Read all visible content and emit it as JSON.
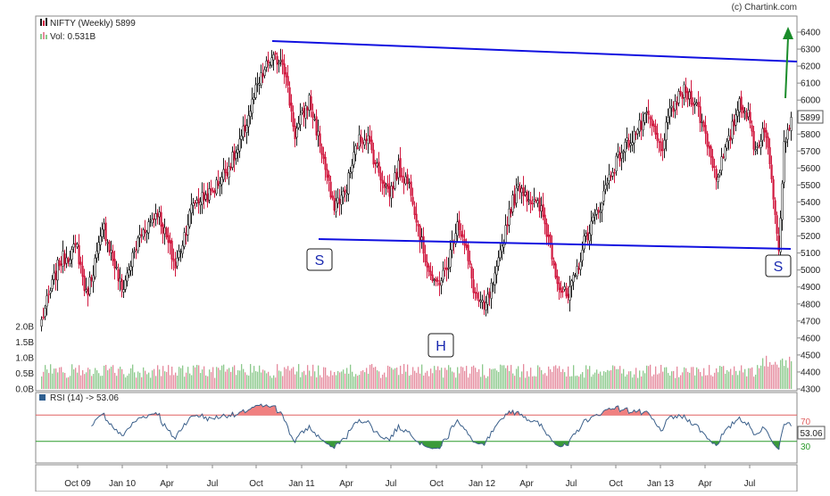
{
  "header": {
    "copyright": "(c) Chartink.com",
    "symbol_line": "NIFTY (Weekly) 5899",
    "volume_line": "Vol: 0.531B"
  },
  "rsi": {
    "label": "RSI (14) -> 53.06",
    "value_label": "53.06",
    "upper_label": "70",
    "lower_label": "30"
  },
  "price_label": "5899",
  "annotations": {
    "left_shoulder": "S",
    "head": "H",
    "right_shoulder": "S"
  },
  "colors": {
    "bull": "#1a1a1a",
    "bear": "#d0183f",
    "vol_bull": "#8cc98c",
    "vol_bear": "#e58a9d",
    "trendline": "#1010e0",
    "arrow": "#1a8c2a",
    "rsi_line": "#3a5f8a",
    "rsi_upper": "#e06060",
    "rsi_lower": "#2a9a2a"
  },
  "chart_data": [
    {
      "type": "candlestick",
      "title": "NIFTY (Weekly) 5899",
      "x_tick_labels": [
        "Oct 09",
        "Jan 10",
        "Apr",
        "Jul",
        "Oct",
        "Jan 11",
        "Apr",
        "Jul",
        "Oct",
        "Jan 12",
        "Apr",
        "Jul",
        "Oct",
        "Jan 13",
        "Apr",
        "Jul"
      ],
      "y_tick_labels": [
        "4300",
        "4400",
        "4500",
        "4600",
        "4700",
        "4800",
        "4900",
        "5000",
        "5100",
        "5200",
        "5300",
        "5400",
        "5500",
        "5600",
        "5700",
        "5800",
        "5900",
        "6000",
        "6100",
        "6200",
        "6300",
        "6400"
      ],
      "ylim": [
        4300,
        6500
      ],
      "volume_tick_labels": [
        "0.0B",
        "0.5B",
        "1.0B",
        "1.5B",
        "2.0B"
      ],
      "volume_ylim": [
        0,
        2.0
      ],
      "last_close": 5899,
      "close_path": [
        [
          0,
          4700
        ],
        [
          10,
          5050
        ],
        [
          20,
          5130
        ],
        [
          25,
          4850
        ],
        [
          35,
          5250
        ],
        [
          45,
          4880
        ],
        [
          55,
          5200
        ],
        [
          65,
          5350
        ],
        [
          75,
          5020
        ],
        [
          85,
          5400
        ],
        [
          95,
          5450
        ],
        [
          110,
          5700
        ],
        [
          120,
          6050
        ],
        [
          127,
          6220
        ],
        [
          135,
          6250
        ],
        [
          142,
          5800
        ],
        [
          150,
          6000
        ],
        [
          157,
          5700
        ],
        [
          163,
          5380
        ],
        [
          170,
          5450
        ],
        [
          177,
          5750
        ],
        [
          182,
          5800
        ],
        [
          188,
          5600
        ],
        [
          195,
          5450
        ],
        [
          200,
          5600
        ],
        [
          207,
          5480
        ],
        [
          213,
          5150
        ],
        [
          220,
          4900
        ],
        [
          227,
          5000
        ],
        [
          233,
          5300
        ],
        [
          238,
          5100
        ],
        [
          243,
          4850
        ],
        [
          248,
          4760
        ],
        [
          255,
          4980
        ],
        [
          262,
          5350
        ],
        [
          268,
          5500
        ],
        [
          275,
          5400
        ],
        [
          280,
          5350
        ],
        [
          285,
          5150
        ],
        [
          290,
          4900
        ],
        [
          295,
          4830
        ],
        [
          300,
          5000
        ],
        [
          305,
          5200
        ],
        [
          312,
          5350
        ],
        [
          318,
          5550
        ],
        [
          325,
          5700
        ],
        [
          332,
          5800
        ],
        [
          340,
          5900
        ],
        [
          347,
          5700
        ],
        [
          353,
          5950
        ],
        [
          360,
          6050
        ],
        [
          366,
          6000
        ],
        [
          372,
          5800
        ],
        [
          378,
          5550
        ],
        [
          385,
          5750
        ],
        [
          391,
          6000
        ],
        [
          396,
          5900
        ],
        [
          400,
          5700
        ],
        [
          405,
          5850
        ],
        [
          410,
          5450
        ],
        [
          413,
          5150
        ],
        [
          416,
          5750
        ],
        [
          419,
          5870
        ],
        [
          420,
          5899
        ]
      ]
    },
    {
      "type": "line",
      "title": "RSI (14) -> 53.06",
      "ylim": [
        0,
        100
      ],
      "levels": [
        70,
        30
      ],
      "last_value": 53.06
    }
  ]
}
